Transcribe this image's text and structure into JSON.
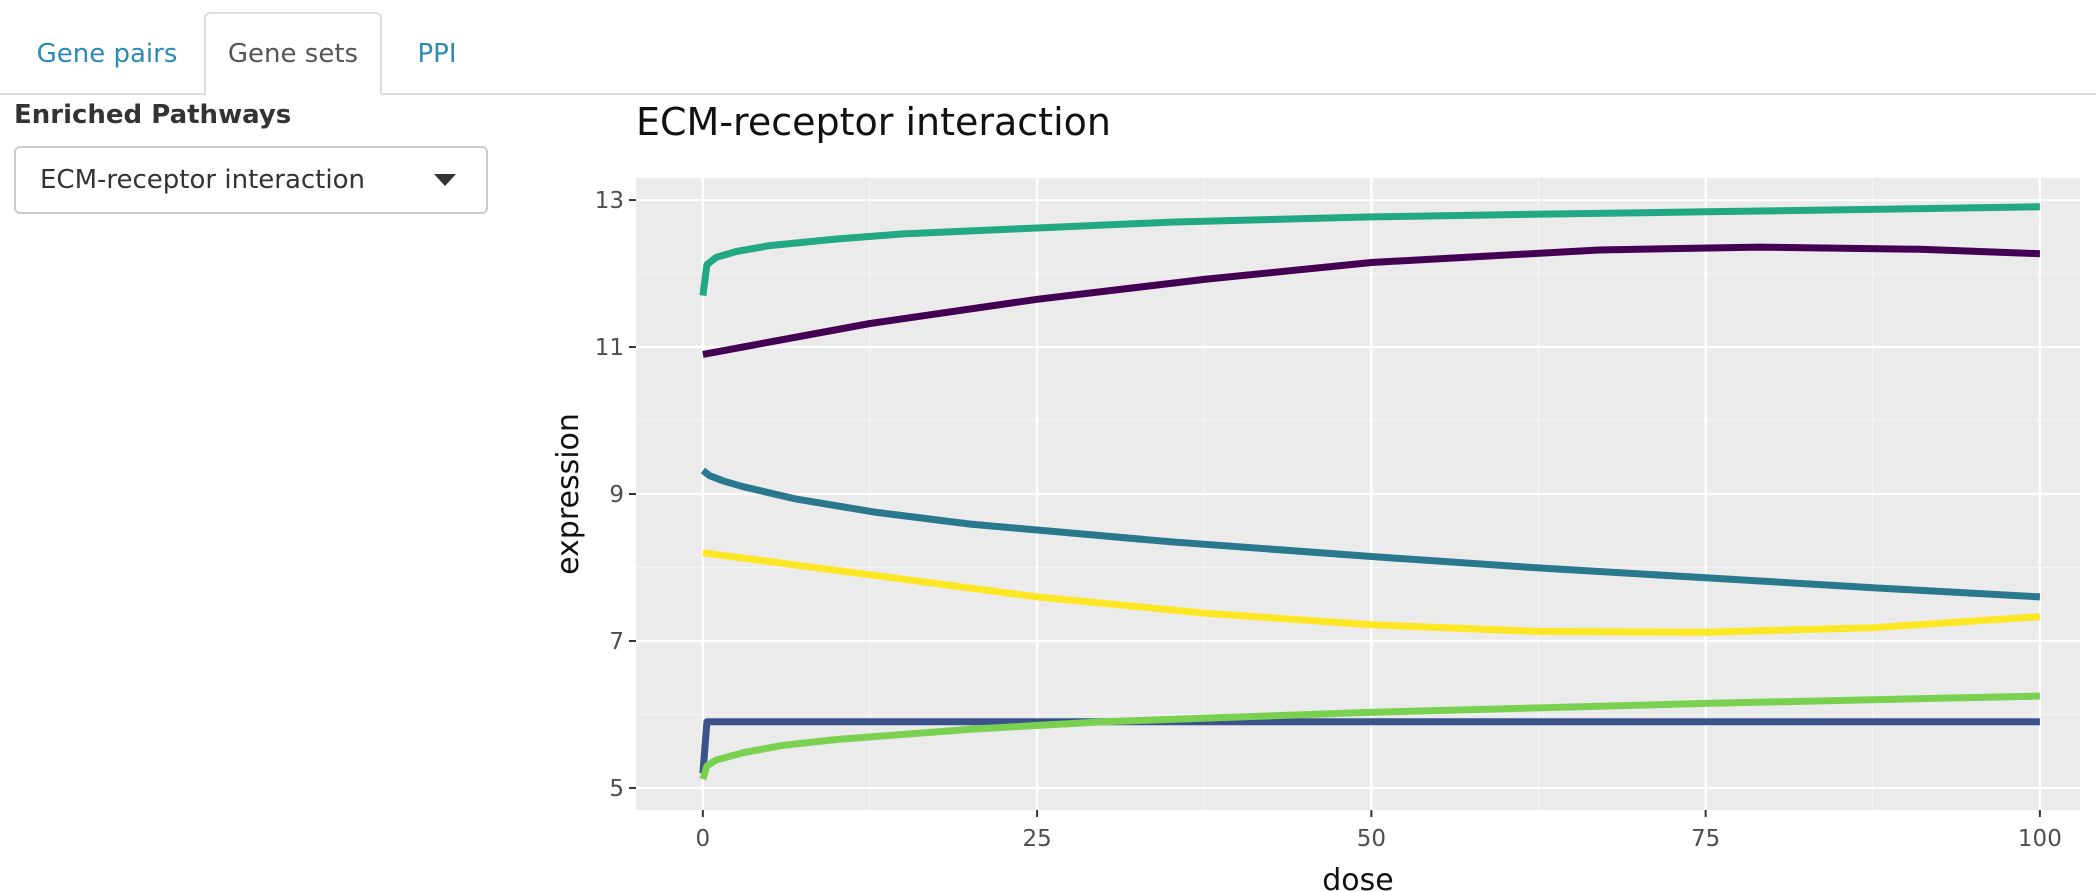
{
  "tabs": [
    {
      "label": "Gene pairs",
      "active": false
    },
    {
      "label": "Gene sets",
      "active": true
    },
    {
      "label": "PPI",
      "active": false
    }
  ],
  "sidebar": {
    "label": "Enriched Pathways",
    "select_value": "ECM-receptor interaction"
  },
  "colors": {
    "link": "#2c8ab8",
    "panel_bg": "#ebebeb",
    "grid": "#ffffff"
  },
  "chart_data": {
    "type": "line",
    "title": "ECM-receptor interaction",
    "xlabel": "dose",
    "ylabel": "expression",
    "xlim": [
      -5,
      103
    ],
    "ylim": [
      4.7,
      13.3
    ],
    "xticks": [
      0,
      25,
      50,
      75,
      100
    ],
    "yticks": [
      5,
      7,
      9,
      11,
      13
    ],
    "grid": true,
    "legend": "none",
    "series": [
      {
        "color": "#22a884",
        "x": [
          0,
          0.3,
          1,
          2.5,
          5,
          10,
          15,
          25,
          35,
          50,
          60,
          75,
          90,
          100
        ],
        "y": [
          11.7,
          12.12,
          12.22,
          12.3,
          12.38,
          12.47,
          12.54,
          12.62,
          12.7,
          12.77,
          12.8,
          12.84,
          12.88,
          12.91
        ]
      },
      {
        "color": "#440154",
        "x": [
          0,
          12.5,
          25,
          37.5,
          50,
          67,
          79,
          91,
          100
        ],
        "y": [
          10.9,
          11.32,
          11.65,
          11.92,
          12.15,
          12.32,
          12.36,
          12.33,
          12.27
        ]
      },
      {
        "color": "#2a788e",
        "x": [
          0,
          0.5,
          1.5,
          3,
          7,
          13,
          20,
          35,
          50,
          62,
          75,
          88,
          100
        ],
        "y": [
          9.32,
          9.25,
          9.18,
          9.1,
          8.93,
          8.75,
          8.59,
          8.35,
          8.15,
          8.0,
          7.86,
          7.72,
          7.6
        ]
      },
      {
        "color": "#fde725",
        "x": [
          0,
          12.5,
          25,
          37.5,
          50,
          62.5,
          75,
          87.5,
          100
        ],
        "y": [
          8.2,
          7.9,
          7.6,
          7.38,
          7.22,
          7.13,
          7.12,
          7.18,
          7.33
        ]
      },
      {
        "color": "#3b528b",
        "x": [
          0,
          0.3,
          5,
          25,
          50,
          75,
          100
        ],
        "y": [
          5.2,
          5.9,
          5.9,
          5.9,
          5.9,
          5.9,
          5.9
        ]
      },
      {
        "color": "#7ad151",
        "x": [
          0,
          0.3,
          1,
          3,
          6,
          10,
          20,
          30,
          50,
          75,
          100
        ],
        "y": [
          5.12,
          5.3,
          5.38,
          5.48,
          5.58,
          5.66,
          5.8,
          5.9,
          6.03,
          6.15,
          6.25
        ]
      }
    ]
  }
}
